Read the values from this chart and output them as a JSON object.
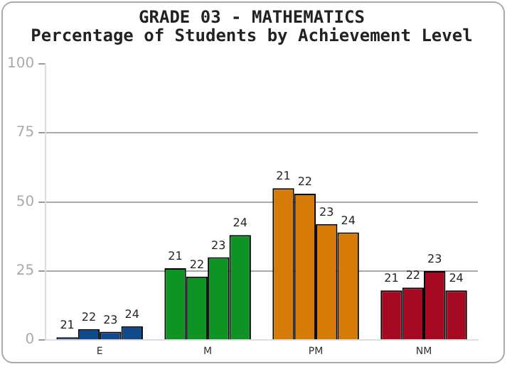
{
  "chart_data": {
    "type": "bar",
    "title": "GRADE 03 - MATHEMATICS",
    "subtitle": "Percentage of Students by Achievement Level",
    "categories": [
      "E",
      "M",
      "PM",
      "NM"
    ],
    "series": [
      {
        "name": "21",
        "colors": [
          "#0e4a8c",
          "#0f9325",
          "#d67b08",
          "#a50a22"
        ],
        "values": [
          1,
          26,
          55,
          18
        ]
      },
      {
        "name": "22",
        "colors": [
          "#0e4a8c",
          "#0f9325",
          "#d67b08",
          "#a50a22"
        ],
        "values": [
          4,
          23,
          53,
          19
        ]
      },
      {
        "name": "23",
        "colors": [
          "#0e4a8c",
          "#0f9325",
          "#d67b08",
          "#a50a22"
        ],
        "values": [
          3,
          30,
          42,
          25
        ]
      },
      {
        "name": "24",
        "colors": [
          "#0e4a8c",
          "#0f9325",
          "#d67b08",
          "#a50a22"
        ],
        "values": [
          5,
          38,
          39,
          18
        ]
      }
    ],
    "ylim": [
      0,
      100
    ],
    "yticks": [
      0,
      25,
      50,
      75,
      100
    ],
    "grid": "y",
    "legend": false
  }
}
